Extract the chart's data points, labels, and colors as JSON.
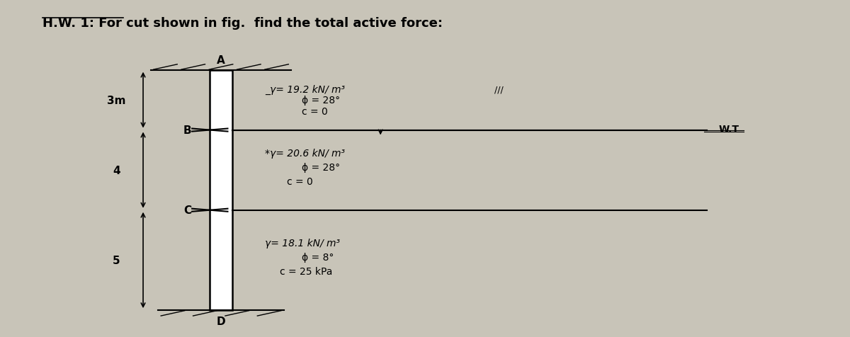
{
  "title": "H.W. 1: For cut shown in fig.  find the total active force:",
  "title_fontsize": 13,
  "figure_bg": "#c8c4b8",
  "label_A": "A",
  "label_B": "B",
  "label_C": "C",
  "label_D": "D",
  "dim_3m": "3m",
  "dim_4": "4",
  "dim_5": "5",
  "wt_label": "W.T",
  "layer1_line1": "γ= 19.2 kN/ m³",
  "layer1_line2": "ϕ = 28°",
  "layer1_line3": "c = 0",
  "layer2_line1": "γ= 20.6 kN/ m³",
  "layer2_line2": "ϕ = 28°",
  "layer2_line3": "c = 0",
  "layer3_line1": "γ= 18.1 kN/ m³",
  "layer3_line2": "ϕ = 8°",
  "layer3_line3": "c = 25 kPa"
}
